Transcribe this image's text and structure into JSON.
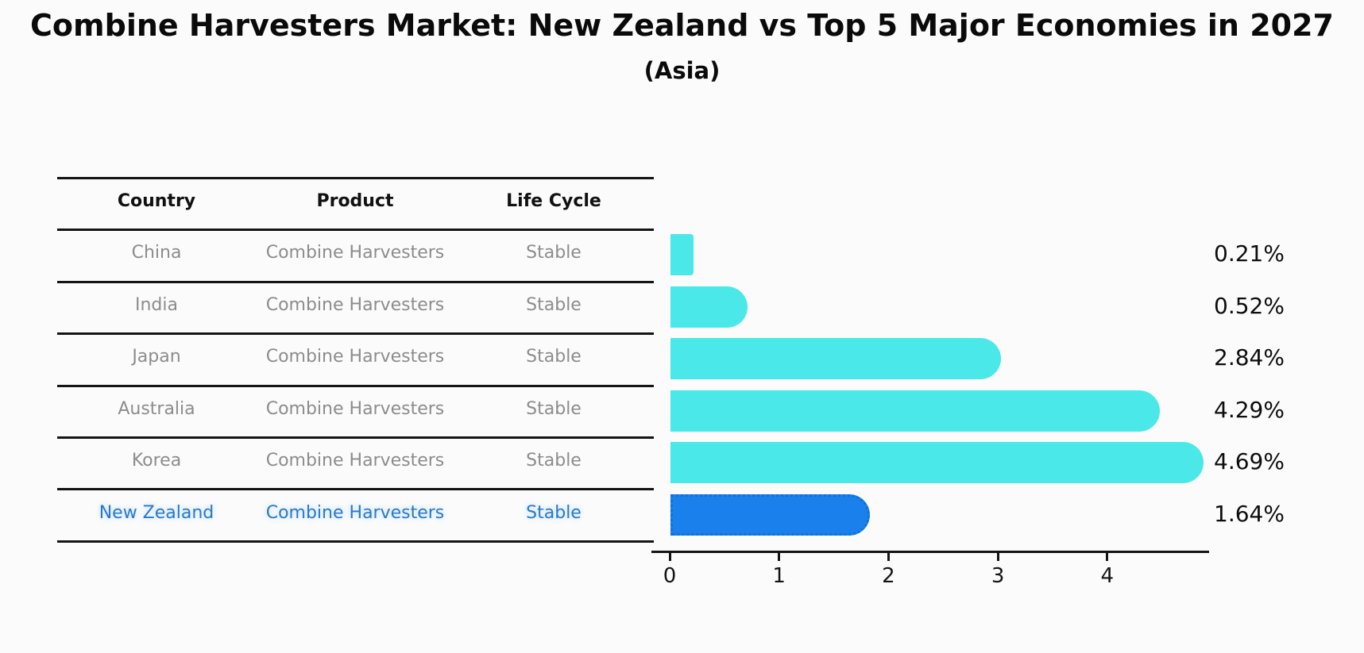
{
  "title": "Combine Harvesters Market: New Zealand vs Top 5 Major Economies in 2027",
  "subtitle": "(Asia)",
  "table": {
    "headers": [
      "Country",
      "Product",
      "Life Cycle"
    ],
    "rows": [
      {
        "country": "China",
        "product": "Combine Harvesters",
        "life_cycle": "Stable",
        "highlight": false
      },
      {
        "country": "India",
        "product": "Combine Harvesters",
        "life_cycle": "Stable",
        "highlight": false
      },
      {
        "country": "Japan",
        "product": "Combine Harvesters",
        "life_cycle": "Stable",
        "highlight": false
      },
      {
        "country": "Australia",
        "product": "Combine Harvesters",
        "life_cycle": "Stable",
        "highlight": false
      },
      {
        "country": "Korea",
        "product": "Combine Harvesters",
        "life_cycle": "Stable",
        "highlight": false
      },
      {
        "country": "New Zealand",
        "product": "Combine Harvesters",
        "life_cycle": "Stable",
        "highlight": true
      }
    ]
  },
  "chart_data": {
    "type": "bar",
    "orientation": "horizontal",
    "title": "Combine Harvesters Market: New Zealand vs Top 5 Major Economies in 2027 (Asia)",
    "categories": [
      "China",
      "India",
      "Japan",
      "Australia",
      "Korea",
      "New Zealand"
    ],
    "values": [
      0.21,
      0.52,
      2.84,
      4.29,
      4.69,
      1.64
    ],
    "value_labels": [
      "0.21%",
      "0.52%",
      "2.84%",
      "4.29%",
      "4.69%",
      "1.64%"
    ],
    "x_ticks": [
      "0",
      "1",
      "2",
      "3",
      "4"
    ],
    "xlim": [
      0,
      4.92
    ],
    "xlabel": "",
    "ylabel": "",
    "grid": false,
    "legend": "none",
    "bar_color": "#4ae8e8",
    "highlight_color": "#1a80ec",
    "highlight_index": 5
  },
  "colors": {
    "background": "#fcfbfb",
    "bar_cyan": "#4ae8e8",
    "bar_blue": "#1a80ec",
    "link_blue": "#2b7ac8",
    "cell_gray": "#8c8c8c",
    "axis_black": "#141414"
  }
}
